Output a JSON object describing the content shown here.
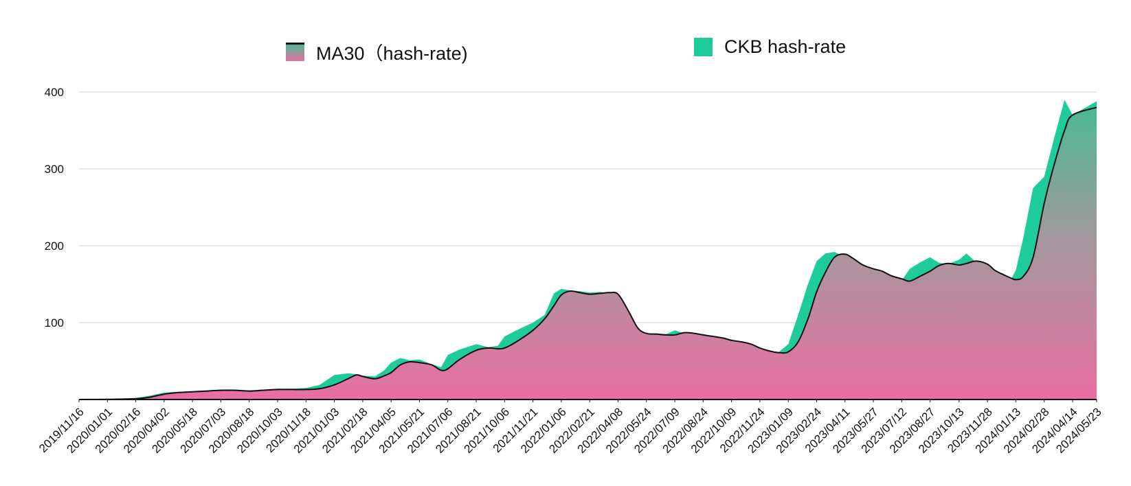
{
  "chart_data": {
    "type": "area",
    "title": "",
    "xlabel": "",
    "ylabel": "",
    "ylim": [
      0,
      400
    ],
    "y_ticks": [
      100,
      200,
      300,
      400
    ],
    "grid": true,
    "legend_position": "top",
    "x_tick_labels": [
      "2019/11/16",
      "2020/01/01",
      "2020/02/16",
      "2020/04/02",
      "2020/05/18",
      "2020/07/03",
      "2020/08/18",
      "2020/10/03",
      "2020/11/18",
      "2021/01/03",
      "2021/02/18",
      "2021/04/05",
      "2021/05/21",
      "2021/07/06",
      "2021/08/21",
      "2021/10/06",
      "2021/11/21",
      "2022/01/06",
      "2022/02/21",
      "2022/04/08",
      "2022/05/24",
      "2022/07/09",
      "2022/08/24",
      "2022/10/09",
      "2022/11/24",
      "2023/01/09",
      "2023/02/24",
      "2023/04/11",
      "2023/05/27",
      "2023/07/12",
      "2023/08/27",
      "2023/10/13",
      "2023/11/28",
      "2024/01/13",
      "2024/02/28",
      "2024/04/14",
      "2024/05/23"
    ],
    "series": [
      {
        "name": "MA30（hash-rate)",
        "color_top": "#4db894",
        "color_bottom": "#e96fa0",
        "points": [
          [
            "2019/11/16",
            0
          ],
          [
            "2020/01/01",
            0.3
          ],
          [
            "2020/02/16",
            1
          ],
          [
            "2020/03/10",
            3
          ],
          [
            "2020/04/02",
            7
          ],
          [
            "2020/04/25",
            9
          ],
          [
            "2020/05/18",
            10
          ],
          [
            "2020/06/10",
            11
          ],
          [
            "2020/07/03",
            12
          ],
          [
            "2020/07/25",
            12
          ],
          [
            "2020/08/18",
            11
          ],
          [
            "2020/09/10",
            12
          ],
          [
            "2020/10/03",
            13
          ],
          [
            "2020/10/25",
            13
          ],
          [
            "2020/11/18",
            13
          ],
          [
            "2020/12/10",
            14
          ],
          [
            "2021/01/03",
            19
          ],
          [
            "2021/01/25",
            27
          ],
          [
            "2021/02/08",
            32
          ],
          [
            "2021/02/18",
            30
          ],
          [
            "2021/03/10",
            27
          ],
          [
            "2021/03/25",
            31
          ],
          [
            "2021/04/05",
            35
          ],
          [
            "2021/04/20",
            45
          ],
          [
            "2021/05/05",
            49
          ],
          [
            "2021/05/21",
            48
          ],
          [
            "2021/06/10",
            45
          ],
          [
            "2021/06/25",
            38
          ],
          [
            "2021/07/06",
            40
          ],
          [
            "2021/07/25",
            52
          ],
          [
            "2021/08/21",
            64
          ],
          [
            "2021/09/10",
            67
          ],
          [
            "2021/09/25",
            66
          ],
          [
            "2021/10/06",
            67
          ],
          [
            "2021/10/25",
            75
          ],
          [
            "2021/11/21",
            90
          ],
          [
            "2021/12/10",
            105
          ],
          [
            "2021/12/25",
            122
          ],
          [
            "2022/01/06",
            136
          ],
          [
            "2022/01/20",
            141
          ],
          [
            "2022/02/05",
            139
          ],
          [
            "2022/02/21",
            137
          ],
          [
            "2022/03/10",
            138
          ],
          [
            "2022/03/25",
            139
          ],
          [
            "2022/04/08",
            137
          ],
          [
            "2022/04/25",
            115
          ],
          [
            "2022/05/10",
            93
          ],
          [
            "2022/05/24",
            86
          ],
          [
            "2022/06/10",
            85
          ],
          [
            "2022/06/25",
            84
          ],
          [
            "2022/07/09",
            84
          ],
          [
            "2022/07/25",
            87
          ],
          [
            "2022/08/10",
            86
          ],
          [
            "2022/08/24",
            84
          ],
          [
            "2022/09/10",
            82
          ],
          [
            "2022/09/25",
            80
          ],
          [
            "2022/10/09",
            77
          ],
          [
            "2022/10/25",
            75
          ],
          [
            "2022/11/10",
            72
          ],
          [
            "2022/11/24",
            67
          ],
          [
            "2022/12/10",
            63
          ],
          [
            "2022/12/25",
            61
          ],
          [
            "2023/01/09",
            62
          ],
          [
            "2023/01/25",
            75
          ],
          [
            "2023/02/10",
            105
          ],
          [
            "2023/02/24",
            140
          ],
          [
            "2023/03/10",
            165
          ],
          [
            "2023/03/25",
            185
          ],
          [
            "2023/04/11",
            189
          ],
          [
            "2023/04/25",
            183
          ],
          [
            "2023/05/10",
            175
          ],
          [
            "2023/05/27",
            170
          ],
          [
            "2023/06/10",
            167
          ],
          [
            "2023/06/25",
            161
          ],
          [
            "2023/07/12",
            157
          ],
          [
            "2023/07/25",
            154
          ],
          [
            "2023/08/10",
            160
          ],
          [
            "2023/08/27",
            167
          ],
          [
            "2023/09/10",
            174
          ],
          [
            "2023/09/25",
            177
          ],
          [
            "2023/10/13",
            175
          ],
          [
            "2023/10/25",
            177
          ],
          [
            "2023/11/10",
            180
          ],
          [
            "2023/11/28",
            176
          ],
          [
            "2023/12/10",
            168
          ],
          [
            "2023/12/25",
            162
          ],
          [
            "2024/01/05",
            158
          ],
          [
            "2024/01/13",
            156
          ],
          [
            "2024/01/25",
            160
          ],
          [
            "2024/02/10",
            185
          ],
          [
            "2024/02/28",
            255
          ],
          [
            "2024/03/15",
            305
          ],
          [
            "2024/04/01",
            350
          ],
          [
            "2024/04/14",
            370
          ],
          [
            "2024/05/23",
            380
          ]
        ]
      },
      {
        "name": "CKB hash-rate",
        "color": "#1fcc99",
        "points": [
          [
            "2019/11/16",
            0
          ],
          [
            "2020/01/01",
            0.5
          ],
          [
            "2020/02/16",
            2
          ],
          [
            "2020/03/10",
            5
          ],
          [
            "2020/04/02",
            9
          ],
          [
            "2020/04/25",
            10
          ],
          [
            "2020/05/18",
            11
          ],
          [
            "2020/06/10",
            12
          ],
          [
            "2020/07/03",
            13
          ],
          [
            "2020/07/25",
            13
          ],
          [
            "2020/08/18",
            12
          ],
          [
            "2020/09/10",
            13
          ],
          [
            "2020/10/03",
            14
          ],
          [
            "2020/10/25",
            14
          ],
          [
            "2020/11/18",
            15
          ],
          [
            "2020/12/10",
            19
          ],
          [
            "2021/01/03",
            32
          ],
          [
            "2021/01/25",
            34
          ],
          [
            "2021/02/08",
            33
          ],
          [
            "2021/02/18",
            31
          ],
          [
            "2021/03/10",
            30
          ],
          [
            "2021/03/25",
            38
          ],
          [
            "2021/04/05",
            48
          ],
          [
            "2021/04/20",
            54
          ],
          [
            "2021/05/05",
            51
          ],
          [
            "2021/05/21",
            52
          ],
          [
            "2021/06/10",
            46
          ],
          [
            "2021/06/25",
            42
          ],
          [
            "2021/07/06",
            58
          ],
          [
            "2021/07/25",
            65
          ],
          [
            "2021/08/21",
            72
          ],
          [
            "2021/09/10",
            68
          ],
          [
            "2021/09/25",
            70
          ],
          [
            "2021/10/06",
            82
          ],
          [
            "2021/10/25",
            90
          ],
          [
            "2021/11/21",
            100
          ],
          [
            "2021/12/10",
            110
          ],
          [
            "2021/12/25",
            138
          ],
          [
            "2022/01/06",
            144
          ],
          [
            "2022/01/20",
            142
          ],
          [
            "2022/02/05",
            141
          ],
          [
            "2022/02/21",
            139
          ],
          [
            "2022/03/10",
            140
          ],
          [
            "2022/03/25",
            138
          ],
          [
            "2022/04/08",
            122
          ],
          [
            "2022/04/25",
            100
          ],
          [
            "2022/05/10",
            88
          ],
          [
            "2022/05/24",
            85
          ],
          [
            "2022/06/10",
            86
          ],
          [
            "2022/06/25",
            85
          ],
          [
            "2022/07/09",
            90
          ],
          [
            "2022/07/25",
            86
          ],
          [
            "2022/08/10",
            84
          ],
          [
            "2022/08/24",
            85
          ],
          [
            "2022/09/10",
            80
          ],
          [
            "2022/09/25",
            78
          ],
          [
            "2022/10/09",
            78
          ],
          [
            "2022/10/25",
            74
          ],
          [
            "2022/11/10",
            70
          ],
          [
            "2022/11/24",
            65
          ],
          [
            "2022/12/10",
            62
          ],
          [
            "2022/12/25",
            62
          ],
          [
            "2023/01/09",
            72
          ],
          [
            "2023/01/25",
            110
          ],
          [
            "2023/02/10",
            150
          ],
          [
            "2023/02/24",
            180
          ],
          [
            "2023/03/10",
            190
          ],
          [
            "2023/03/25",
            192
          ],
          [
            "2023/04/11",
            185
          ],
          [
            "2023/04/25",
            178
          ],
          [
            "2023/05/10",
            172
          ],
          [
            "2023/05/27",
            168
          ],
          [
            "2023/06/10",
            163
          ],
          [
            "2023/06/25",
            158
          ],
          [
            "2023/07/12",
            155
          ],
          [
            "2023/07/25",
            170
          ],
          [
            "2023/08/10",
            178
          ],
          [
            "2023/08/27",
            185
          ],
          [
            "2023/09/10",
            178
          ],
          [
            "2023/09/25",
            176
          ],
          [
            "2023/10/13",
            182
          ],
          [
            "2023/10/25",
            190
          ],
          [
            "2023/11/10",
            178
          ],
          [
            "2023/11/28",
            168
          ],
          [
            "2023/12/10",
            162
          ],
          [
            "2023/12/25",
            157
          ],
          [
            "2024/01/05",
            156
          ],
          [
            "2024/01/13",
            168
          ],
          [
            "2024/01/25",
            210
          ],
          [
            "2024/02/10",
            275
          ],
          [
            "2024/02/28",
            290
          ],
          [
            "2024/03/15",
            340
          ],
          [
            "2024/04/01",
            390
          ],
          [
            "2024/04/14",
            370
          ],
          [
            "2024/05/23",
            388
          ]
        ]
      }
    ]
  }
}
